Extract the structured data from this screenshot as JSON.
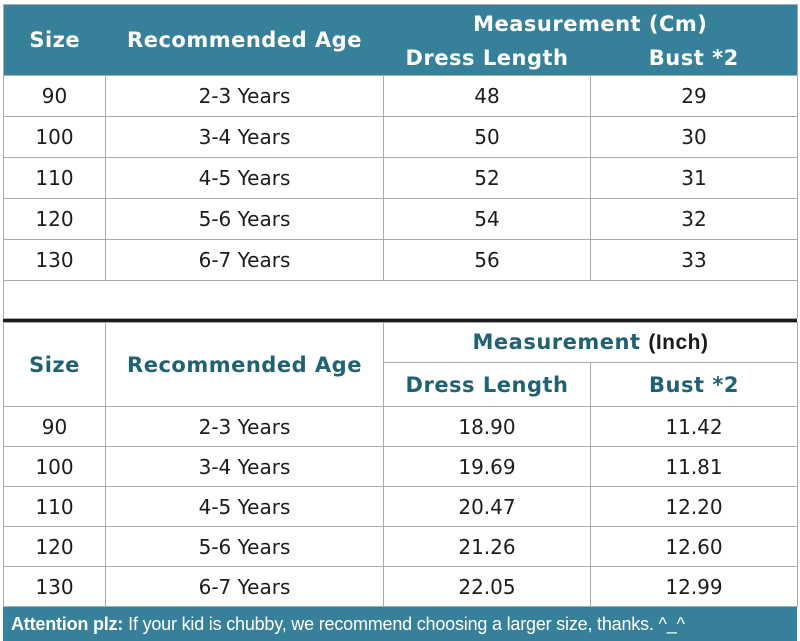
{
  "colors": {
    "accent_teal": "#37809a",
    "header_text_white": "#ffffff",
    "inch_header_text_teal": "#1f6272",
    "body_text": "#1c1c1c",
    "grid_border": "#ababab",
    "thick_separator": "#1a1a1a"
  },
  "cm_table": {
    "size_label": "Size",
    "age_label": "Recommended Age",
    "measurement_label": "Measurement (Cm)",
    "dress_length_label": "Dress Length",
    "bust_label": "Bust *2",
    "rows": [
      [
        "90",
        "2-3 Years",
        "48",
        "29"
      ],
      [
        "100",
        "3-4 Years",
        "50",
        "30"
      ],
      [
        "110",
        "4-5 Years",
        "52",
        "31"
      ],
      [
        "120",
        "5-6 Years",
        "54",
        "32"
      ],
      [
        "130",
        "6-7 Years",
        "56",
        "33"
      ]
    ]
  },
  "inch_table": {
    "size_label": "Size",
    "age_label": "Recommended Age",
    "measurement_prefix": "Measurement",
    "measurement_suffix": "(Inch)",
    "dress_length_label": "Dress Length",
    "bust_label": "Bust *2",
    "rows": [
      [
        "90",
        "2-3 Years",
        "18.90",
        "11.42"
      ],
      [
        "100",
        "3-4 Years",
        "19.69",
        "11.81"
      ],
      [
        "110",
        "4-5 Years",
        "20.47",
        "12.20"
      ],
      [
        "120",
        "5-6 Years",
        "21.26",
        "12.60"
      ],
      [
        "130",
        "6-7 Years",
        "22.05",
        "12.99"
      ]
    ]
  },
  "footer": {
    "bold": "Attention plz:",
    "text": "If your kid is chubby, we recommend choosing a larger size, thanks. ^_^"
  },
  "chart_data": {
    "type": "table",
    "tables": [
      {
        "title": "Measurement (Cm)",
        "columns": [
          "Size",
          "Recommended Age",
          "Dress Length",
          "Bust *2"
        ],
        "rows": [
          [
            "90",
            "2-3 Years",
            48,
            29
          ],
          [
            "100",
            "3-4 Years",
            50,
            30
          ],
          [
            "110",
            "4-5 Years",
            52,
            31
          ],
          [
            "120",
            "5-6 Years",
            54,
            32
          ],
          [
            "130",
            "6-7 Years",
            56,
            33
          ]
        ]
      },
      {
        "title": "Measurement (Inch)",
        "columns": [
          "Size",
          "Recommended Age",
          "Dress Length",
          "Bust *2"
        ],
        "rows": [
          [
            "90",
            "2-3 Years",
            18.9,
            11.42
          ],
          [
            "100",
            "3-4 Years",
            19.69,
            11.81
          ],
          [
            "110",
            "4-5 Years",
            20.47,
            12.2
          ],
          [
            "120",
            "5-6 Years",
            21.26,
            12.6
          ],
          [
            "130",
            "6-7 Years",
            22.05,
            12.99
          ]
        ]
      }
    ]
  }
}
